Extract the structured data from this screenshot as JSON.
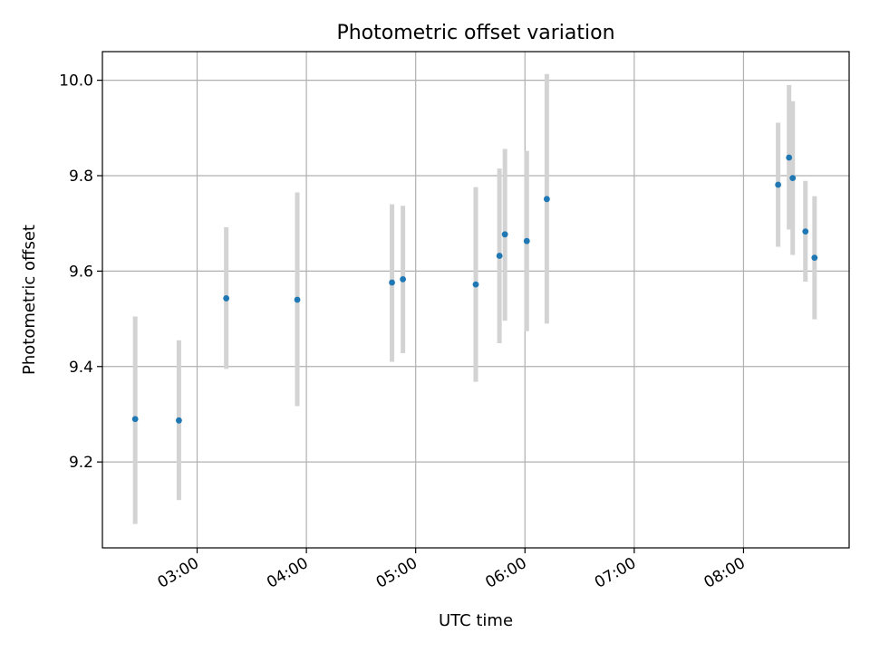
{
  "chart_data": {
    "type": "scatter",
    "title": "Photometric offset variation",
    "xlabel": "UTC time",
    "ylabel": "Photometric offset",
    "x_axis_type": "time",
    "xlim": [
      "02:08",
      "08:58"
    ],
    "ylim": [
      9.02,
      10.06
    ],
    "grid": true,
    "x_ticks": [
      "03:00",
      "04:00",
      "05:00",
      "06:00",
      "07:00",
      "08:00"
    ],
    "y_ticks": [
      "9.2",
      "9.4",
      "9.6",
      "9.8",
      "10.0"
    ],
    "colors": {
      "point": "#1f77b4",
      "errorbar": "#d3d3d3",
      "grid": "#b0b0b0"
    },
    "series": [
      {
        "points": [
          {
            "x": "02:26",
            "y": 9.29,
            "yerr_low": 9.07,
            "yerr_high": 9.505
          },
          {
            "x": "02:50",
            "y": 9.287,
            "yerr_low": 9.12,
            "yerr_high": 9.455
          },
          {
            "x": "03:16",
            "y": 9.543,
            "yerr_low": 9.395,
            "yerr_high": 9.692
          },
          {
            "x": "03:55",
            "y": 9.54,
            "yerr_low": 9.317,
            "yerr_high": 9.765
          },
          {
            "x": "04:47",
            "y": 9.576,
            "yerr_low": 9.41,
            "yerr_high": 9.74
          },
          {
            "x": "04:53",
            "y": 9.583,
            "yerr_low": 9.428,
            "yerr_high": 9.737
          },
          {
            "x": "05:33",
            "y": 9.572,
            "yerr_low": 9.368,
            "yerr_high": 9.776
          },
          {
            "x": "05:46",
            "y": 9.632,
            "yerr_low": 9.449,
            "yerr_high": 9.815
          },
          {
            "x": "05:49",
            "y": 9.677,
            "yerr_low": 9.496,
            "yerr_high": 9.856
          },
          {
            "x": "06:01",
            "y": 9.663,
            "yerr_low": 9.474,
            "yerr_high": 9.852
          },
          {
            "x": "06:12",
            "y": 9.751,
            "yerr_low": 9.49,
            "yerr_high": 10.013
          },
          {
            "x": "08:19",
            "y": 9.781,
            "yerr_low": 9.651,
            "yerr_high": 9.911
          },
          {
            "x": "08:25",
            "y": 9.838,
            "yerr_low": 9.687,
            "yerr_high": 9.99
          },
          {
            "x": "08:27",
            "y": 9.795,
            "yerr_low": 9.634,
            "yerr_high": 9.956
          },
          {
            "x": "08:34",
            "y": 9.683,
            "yerr_low": 9.578,
            "yerr_high": 9.789
          },
          {
            "x": "08:39",
            "y": 9.628,
            "yerr_low": 9.499,
            "yerr_high": 9.757
          }
        ]
      }
    ]
  }
}
